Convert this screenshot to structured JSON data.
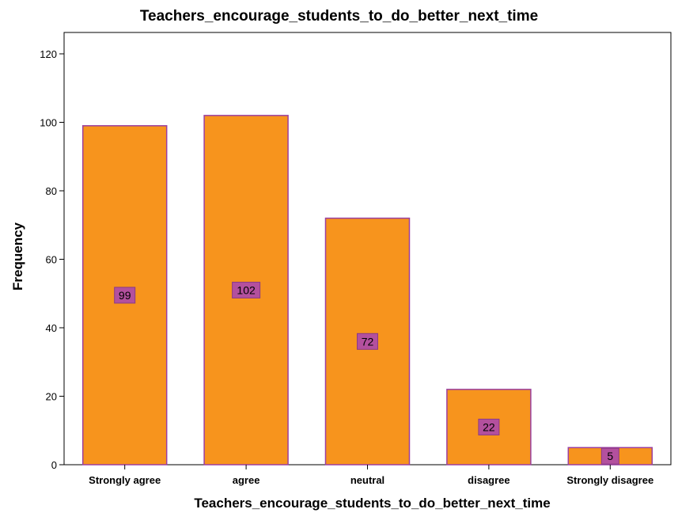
{
  "chart_data": {
    "type": "bar",
    "title": "Teachers_encourage_students_to_do_better_next_time",
    "xlabel": "Teachers_encourage_students_to_do_better_next_time",
    "ylabel": "Frequency",
    "categories": [
      "Strongly agree",
      "agree",
      "neutral",
      "disagree",
      "Strongly disagree"
    ],
    "values": [
      99,
      102,
      72,
      22,
      5
    ],
    "data_labels": [
      "99",
      "102",
      "72",
      "22",
      "5"
    ],
    "ylim": [
      0,
      120
    ],
    "yticks": [
      0,
      20,
      40,
      60,
      80,
      100,
      120
    ],
    "grid": false,
    "bar_color": "#F7941D",
    "bar_edge_color": "#9B3FA0",
    "label_box_color": "#B3509E"
  }
}
